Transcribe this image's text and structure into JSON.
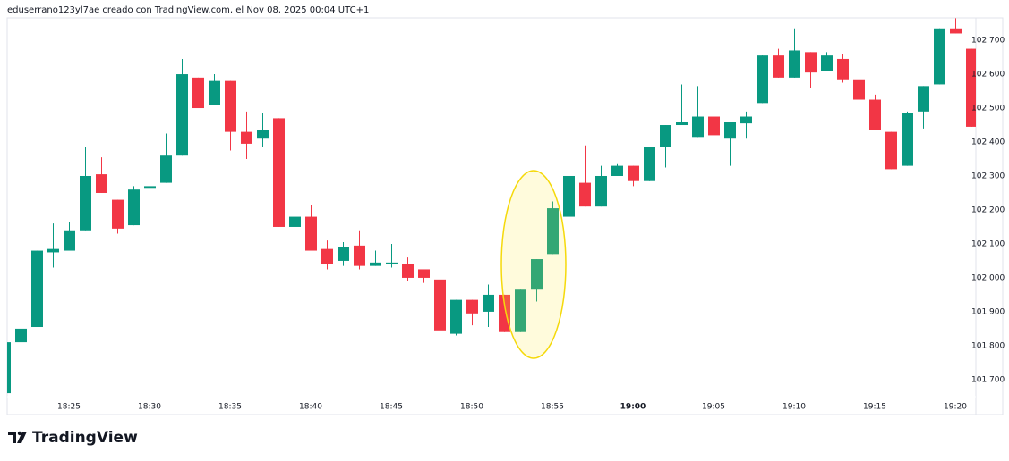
{
  "header": {
    "text": "eduserrano123yl7ae creado con TradingView.com, el Nov 08, 2025 00:04 UTC+1"
  },
  "logo": {
    "text": "TradingView"
  },
  "chart_data": {
    "type": "candlestick",
    "up_color": "#089981",
    "down_color": "#f23645",
    "categories": [
      null,
      null,
      null,
      null,
      "18:25",
      null,
      null,
      null,
      null,
      "18:30",
      null,
      null,
      null,
      null,
      "18:35",
      null,
      null,
      null,
      null,
      "18:40",
      null,
      null,
      null,
      null,
      "18:45",
      null,
      null,
      null,
      null,
      "18:50",
      null,
      null,
      null,
      null,
      "18:55",
      null,
      null,
      null,
      null,
      "19:00",
      null,
      null,
      null,
      null,
      "19:05",
      null,
      null,
      null,
      null,
      "19:10",
      null,
      null,
      null,
      null,
      "19:15",
      null,
      null,
      null,
      null,
      "19:20",
      null
    ],
    "open": [
      101.66,
      101.81,
      101.855,
      102.075,
      102.08,
      102.14,
      102.305,
      102.23,
      102.155,
      102.265,
      102.28,
      102.36,
      102.59,
      102.51,
      102.58,
      102.43,
      102.41,
      102.47,
      102.15,
      102.18,
      102.085,
      102.05,
      102.095,
      102.035,
      102.04,
      102.04,
      102.025,
      101.995,
      101.835,
      101.935,
      101.9,
      101.95,
      101.84,
      101.965,
      102.07,
      102.18,
      102.28,
      102.21,
      102.3,
      102.33,
      102.285,
      102.385,
      102.45,
      102.415,
      102.475,
      102.41,
      102.455,
      102.515,
      102.655,
      102.59,
      102.665,
      102.61,
      102.645,
      102.585,
      102.525,
      102.43,
      102.33,
      102.49,
      102.57,
      102.735,
      102.675
    ],
    "high": [
      101.81,
      101.85,
      102.08,
      102.16,
      102.165,
      102.385,
      102.355,
      102.23,
      102.27,
      102.36,
      102.425,
      102.645,
      102.59,
      102.6,
      102.58,
      102.49,
      102.485,
      102.47,
      102.26,
      102.215,
      102.11,
      102.105,
      102.14,
      102.08,
      102.1,
      102.06,
      102.025,
      101.995,
      101.935,
      101.935,
      101.98,
      101.95,
      101.965,
      102.055,
      102.225,
      102.3,
      102.39,
      102.33,
      102.335,
      102.33,
      102.385,
      102.45,
      102.57,
      102.565,
      102.555,
      102.46,
      102.49,
      102.655,
      102.675,
      102.735,
      102.665,
      102.665,
      102.66,
      102.585,
      102.54,
      102.43,
      102.49,
      102.565,
      102.735,
      102.765,
      102.675
    ],
    "low": [
      101.66,
      101.76,
      101.855,
      102.03,
      102.08,
      102.14,
      102.25,
      102.13,
      102.155,
      102.235,
      102.28,
      102.36,
      102.5,
      102.51,
      102.375,
      102.35,
      102.385,
      102.15,
      102.15,
      102.08,
      102.025,
      102.035,
      102.025,
      102.035,
      102.03,
      101.99,
      101.985,
      101.815,
      101.83,
      101.86,
      101.855,
      101.84,
      101.84,
      101.93,
      102.07,
      102.165,
      102.21,
      102.21,
      102.3,
      102.27,
      102.285,
      102.325,
      102.45,
      102.415,
      102.42,
      102.33,
      102.41,
      102.515,
      102.59,
      102.59,
      102.56,
      102.61,
      102.575,
      102.525,
      102.435,
      102.32,
      102.33,
      102.44,
      102.57,
      102.72,
      102.445
    ],
    "close": [
      101.81,
      101.85,
      102.08,
      102.085,
      102.14,
      102.3,
      102.25,
      102.145,
      102.26,
      102.27,
      102.36,
      102.6,
      102.5,
      102.58,
      102.43,
      102.395,
      102.435,
      102.15,
      102.18,
      102.08,
      102.04,
      102.09,
      102.035,
      102.045,
      102.045,
      102.0,
      102.0,
      101.845,
      101.935,
      101.895,
      101.95,
      101.84,
      101.965,
      102.055,
      102.205,
      102.3,
      102.21,
      102.3,
      102.33,
      102.285,
      102.385,
      102.45,
      102.46,
      102.475,
      102.42,
      102.46,
      102.475,
      102.655,
      102.59,
      102.67,
      102.605,
      102.655,
      102.585,
      102.525,
      102.435,
      102.32,
      102.485,
      102.565,
      102.735,
      102.72,
      102.445
    ],
    "ylim": [
      101.597,
      102.766
    ],
    "yticks": [
      {
        "value": 101.7,
        "label": "101.700"
      },
      {
        "value": 101.8,
        "label": "101.800"
      },
      {
        "value": 101.9,
        "label": "101.900"
      },
      {
        "value": 102.0,
        "label": "102.000"
      },
      {
        "value": 102.1,
        "label": "102.100"
      },
      {
        "value": 102.2,
        "label": "102.200"
      },
      {
        "value": 102.3,
        "label": "102.300"
      },
      {
        "value": 102.4,
        "label": "102.400"
      },
      {
        "value": 102.5,
        "label": "102.500"
      },
      {
        "value": 102.6,
        "label": "102.600"
      },
      {
        "value": 102.7,
        "label": "102.700"
      }
    ]
  }
}
